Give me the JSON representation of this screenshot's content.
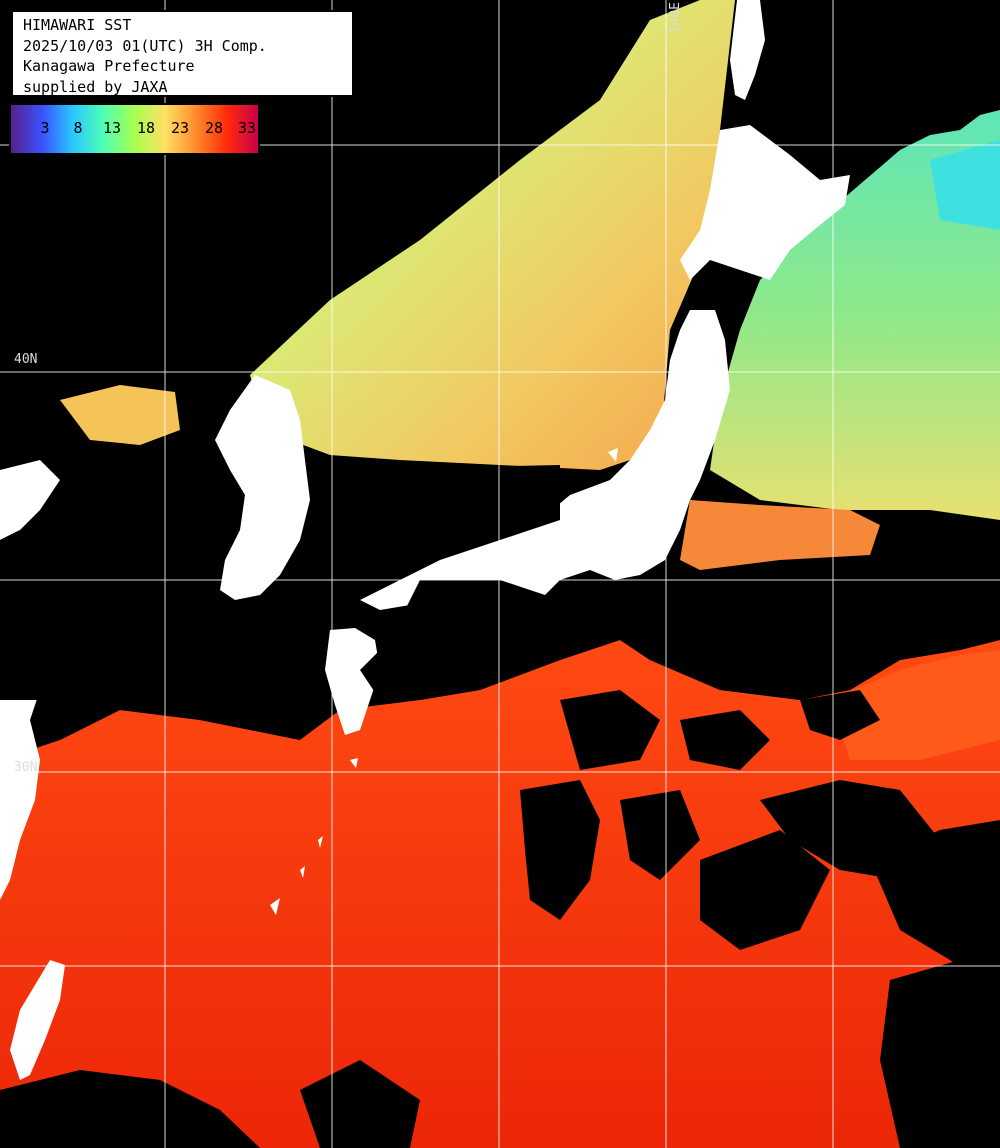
{
  "map": {
    "title": "HIMAWARI SST",
    "date_line": "2025/10/03 01(UTC) 3H Comp.",
    "region": "Kanagawa Prefecture",
    "credit": "supplied by JAXA",
    "legend": {
      "ticks": [
        "3",
        "8",
        "13",
        "18",
        "23",
        "28",
        "33"
      ],
      "colors": [
        "#5a1f8a",
        "#3b50ff",
        "#28c8ff",
        "#4fffb5",
        "#a6ff4f",
        "#ffe066",
        "#ff8a2a",
        "#ff2a0a",
        "#c8004a"
      ]
    },
    "grid_labels": {
      "lat_40": "40N",
      "lat_30": "30N",
      "lon_140": "140E"
    },
    "colors": {
      "land": "#ffffff",
      "no_data": "#000000",
      "grid": "#ffffff"
    }
  }
}
